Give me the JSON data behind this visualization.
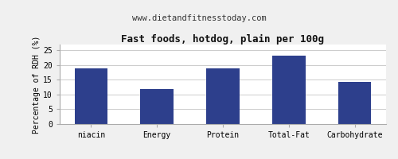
{
  "title": "Fast foods, hotdog, plain per 100g",
  "subtitle": "www.dietandfitnesstoday.com",
  "categories": [
    "niacin",
    "Energy",
    "Protein",
    "Total-Fat",
    "Carbohydrate"
  ],
  "values": [
    19.0,
    12.0,
    19.0,
    23.3,
    14.2
  ],
  "bar_color": "#2d3f8c",
  "ylabel": "Percentage of RDH (%)",
  "ylim": [
    0,
    27
  ],
  "yticks": [
    0,
    5,
    10,
    15,
    20,
    25
  ],
  "background_color": "#f0f0f0",
  "plot_bg_color": "#ffffff",
  "title_fontsize": 9,
  "subtitle_fontsize": 7.5,
  "ylabel_fontsize": 7,
  "tick_fontsize": 7,
  "grid_color": "#cccccc",
  "bar_width": 0.5
}
